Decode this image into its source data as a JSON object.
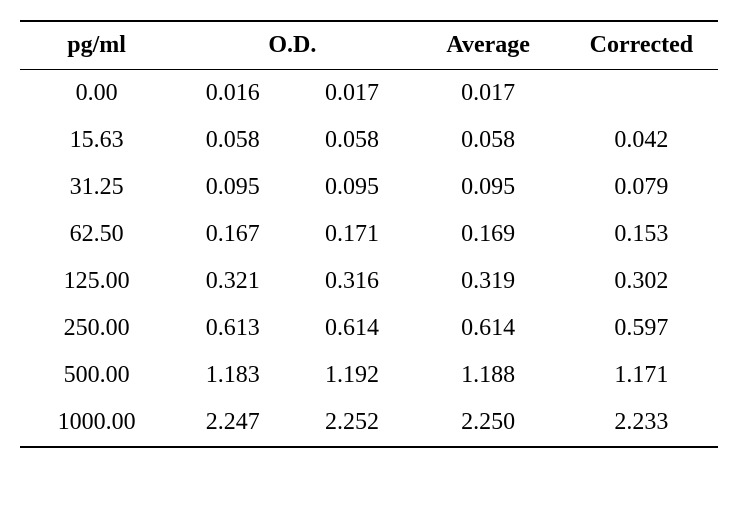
{
  "table": {
    "columns": [
      "pg/ml",
      "O.D.",
      "Average",
      "Corrected"
    ],
    "rows": [
      {
        "pg": "0.00",
        "od1": "0.016",
        "od2": "0.017",
        "avg": "0.017",
        "corr": ""
      },
      {
        "pg": "15.63",
        "od1": "0.058",
        "od2": "0.058",
        "avg": "0.058",
        "corr": "0.042"
      },
      {
        "pg": "31.25",
        "od1": "0.095",
        "od2": "0.095",
        "avg": "0.095",
        "corr": "0.079"
      },
      {
        "pg": "62.50",
        "od1": "0.167",
        "od2": "0.171",
        "avg": "0.169",
        "corr": "0.153"
      },
      {
        "pg": "125.00",
        "od1": "0.321",
        "od2": "0.316",
        "avg": "0.319",
        "corr": "0.302"
      },
      {
        "pg": "250.00",
        "od1": "0.613",
        "od2": "0.614",
        "avg": "0.614",
        "corr": "0.597"
      },
      {
        "pg": "500.00",
        "od1": "1.183",
        "od2": "1.192",
        "avg": "1.188",
        "corr": "1.171"
      },
      {
        "pg": "1000.00",
        "od1": "2.247",
        "od2": "2.252",
        "avg": "2.250",
        "corr": "2.233"
      }
    ],
    "text_color": "#000000",
    "background_color": "#ffffff",
    "font_family": "Times New Roman",
    "header_fontsize": 24,
    "body_fontsize": 24,
    "border_top_width": 2,
    "border_mid_width": 1,
    "border_bottom_width": 2,
    "column_alignment": [
      "center",
      "center",
      "center",
      "center",
      "center"
    ]
  }
}
